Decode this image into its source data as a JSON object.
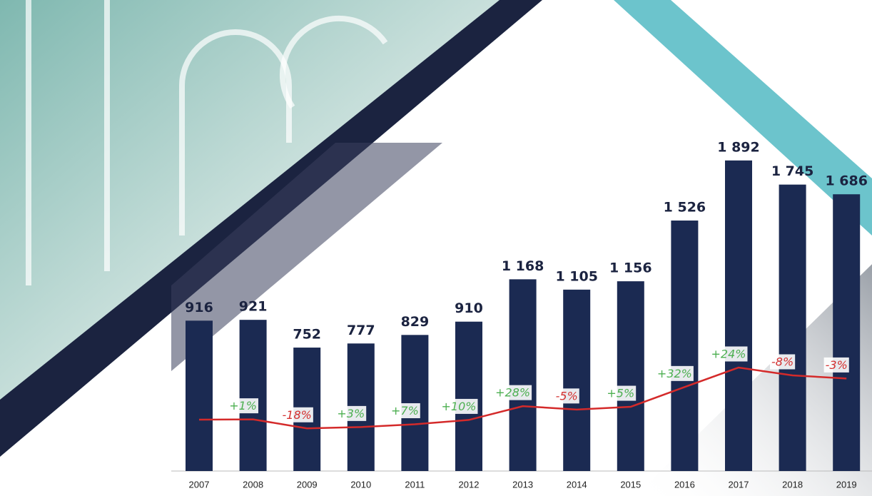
{
  "chart_data": {
    "type": "bar",
    "categories": [
      "2007",
      "2008",
      "2009",
      "2010",
      "2011",
      "2012",
      "2013",
      "2014",
      "2015",
      "2016",
      "2017",
      "2018",
      "2019"
    ],
    "values": [
      916,
      921,
      752,
      777,
      829,
      910,
      1168,
      1105,
      1156,
      1526,
      1892,
      1745,
      1686
    ],
    "value_labels": [
      "916",
      "921",
      "752",
      "777",
      "829",
      "910",
      "1 168",
      "1 105",
      "1 156",
      "1 526",
      "1 892",
      "1 745",
      "1 686"
    ],
    "color": "#1b2a52",
    "ylim": [
      0,
      2000
    ],
    "line_color": "#d42a2a",
    "changes": {
      "values": [
        null,
        1,
        -18,
        3,
        7,
        10,
        28,
        -5,
        5,
        32,
        24,
        -8,
        -3
      ],
      "value_labels": [
        null,
        "+1%",
        "-18%",
        "+3%",
        "+7%",
        "+10%",
        "+28%",
        "-5%",
        "+5%",
        "+32%",
        "+24%",
        "-8%",
        "-3%"
      ],
      "positive_color": "#4caf50",
      "negative_color": "#d43030"
    }
  }
}
